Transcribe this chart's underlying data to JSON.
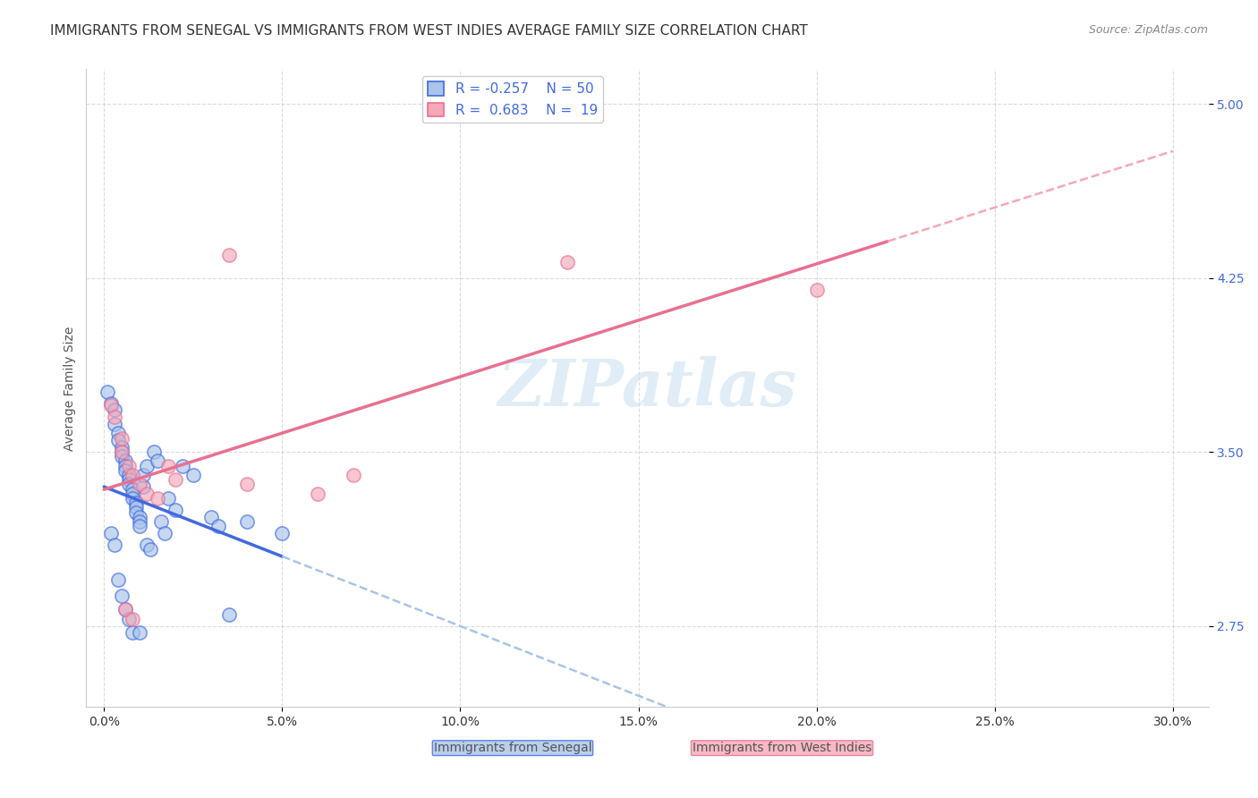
{
  "title": "IMMIGRANTS FROM SENEGAL VS IMMIGRANTS FROM WEST INDIES AVERAGE FAMILY SIZE CORRELATION CHART",
  "source": "Source: ZipAtlas.com",
  "ylabel": "Average Family Size",
  "xlabel_ticks": [
    "0.0%",
    "5.0%",
    "10.0%",
    "15.0%",
    "20.0%",
    "25.0%",
    "30.0%"
  ],
  "xlabel_vals": [
    0.0,
    0.05,
    0.1,
    0.15,
    0.2,
    0.25,
    0.3
  ],
  "yticks": [
    2.75,
    3.5,
    4.25,
    5.0
  ],
  "xlim": [
    -0.005,
    0.31
  ],
  "ylim": [
    2.4,
    5.15
  ],
  "blue_scatter": [
    [
      0.001,
      3.76
    ],
    [
      0.002,
      3.71
    ],
    [
      0.003,
      3.68
    ],
    [
      0.003,
      3.62
    ],
    [
      0.004,
      3.58
    ],
    [
      0.004,
      3.55
    ],
    [
      0.005,
      3.52
    ],
    [
      0.005,
      3.5
    ],
    [
      0.005,
      3.48
    ],
    [
      0.006,
      3.46
    ],
    [
      0.006,
      3.44
    ],
    [
      0.006,
      3.42
    ],
    [
      0.007,
      3.4
    ],
    [
      0.007,
      3.38
    ],
    [
      0.007,
      3.36
    ],
    [
      0.008,
      3.34
    ],
    [
      0.008,
      3.32
    ],
    [
      0.008,
      3.3
    ],
    [
      0.009,
      3.28
    ],
    [
      0.009,
      3.26
    ],
    [
      0.009,
      3.24
    ],
    [
      0.01,
      3.22
    ],
    [
      0.01,
      3.2
    ],
    [
      0.01,
      3.18
    ],
    [
      0.011,
      3.35
    ],
    [
      0.011,
      3.4
    ],
    [
      0.012,
      3.44
    ],
    [
      0.012,
      3.1
    ],
    [
      0.013,
      3.08
    ],
    [
      0.014,
      3.5
    ],
    [
      0.015,
      3.46
    ],
    [
      0.016,
      3.2
    ],
    [
      0.017,
      3.15
    ],
    [
      0.018,
      3.3
    ],
    [
      0.02,
      3.25
    ],
    [
      0.022,
      3.44
    ],
    [
      0.025,
      3.4
    ],
    [
      0.03,
      3.22
    ],
    [
      0.032,
      3.18
    ],
    [
      0.035,
      2.8
    ],
    [
      0.002,
      3.15
    ],
    [
      0.003,
      3.1
    ],
    [
      0.004,
      2.95
    ],
    [
      0.005,
      2.88
    ],
    [
      0.006,
      2.82
    ],
    [
      0.007,
      2.78
    ],
    [
      0.04,
      3.2
    ],
    [
      0.05,
      3.15
    ],
    [
      0.008,
      2.72
    ],
    [
      0.01,
      2.72
    ]
  ],
  "pink_scatter": [
    [
      0.002,
      3.7
    ],
    [
      0.003,
      3.65
    ],
    [
      0.005,
      3.5
    ],
    [
      0.007,
      3.44
    ],
    [
      0.008,
      3.4
    ],
    [
      0.01,
      3.36
    ],
    [
      0.012,
      3.32
    ],
    [
      0.015,
      3.3
    ],
    [
      0.018,
      3.44
    ],
    [
      0.02,
      3.38
    ],
    [
      0.04,
      3.36
    ],
    [
      0.06,
      3.32
    ],
    [
      0.07,
      3.4
    ],
    [
      0.13,
      4.32
    ],
    [
      0.2,
      4.2
    ],
    [
      0.006,
      2.82
    ],
    [
      0.008,
      2.78
    ],
    [
      0.035,
      4.35
    ],
    [
      0.005,
      3.56
    ]
  ],
  "blue_line_color": "#4169E1",
  "pink_line_color": "#E87090",
  "blue_scatter_color": "#A8C4E8",
  "pink_scatter_color": "#F5A8B8",
  "grid_color": "#CCCCCC",
  "background_color": "#FFFFFF",
  "watermark_text": "ZIPatlas",
  "legend_blue_R": "R = -0.257",
  "legend_blue_N": "N = 50",
  "legend_pink_R": "R =  0.683",
  "legend_pink_N": "N =  19",
  "title_fontsize": 11,
  "axis_label_fontsize": 10,
  "tick_fontsize": 10,
  "legend_fontsize": 11,
  "right_tick_color": "#4169E1"
}
